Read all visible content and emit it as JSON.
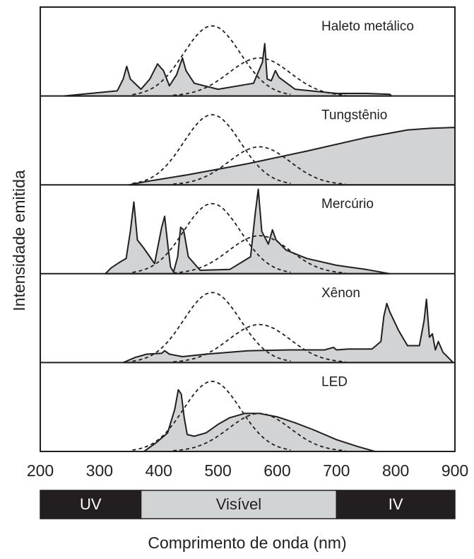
{
  "chart_data": {
    "type": "area",
    "xlabel": "Comprimento de onda (nm)",
    "ylabel": "Intensidade emitida",
    "xlim": [
      200,
      900
    ],
    "xticks": [
      200,
      300,
      400,
      500,
      600,
      700,
      800,
      900
    ],
    "fill_color": "#d1d3d4",
    "line_color": "#231f20",
    "bands": [
      {
        "label": "UV",
        "from": 200,
        "to": 370,
        "fill": "#231f20",
        "text_color": "#ffffff"
      },
      {
        "label": "Visível",
        "from": 370,
        "to": 700,
        "fill": "#d1d3d4",
        "text_color": "#231f20"
      },
      {
        "label": "IV",
        "from": 700,
        "to": 900,
        "fill": "#231f20",
        "text_color": "#ffffff"
      }
    ],
    "reference_curves": [
      {
        "peak": 490,
        "width": 48,
        "amplitude": 0.83,
        "style": "dashed"
      },
      {
        "peak": 570,
        "width": 52,
        "amplitude": 0.45,
        "style": "dashed"
      }
    ],
    "panels": [
      {
        "label": "Haleto metálico",
        "series": [
          [
            240,
            0
          ],
          [
            300,
            0.04
          ],
          [
            330,
            0.06
          ],
          [
            340,
            0.2
          ],
          [
            346,
            0.35
          ],
          [
            352,
            0.2
          ],
          [
            370,
            0.08
          ],
          [
            385,
            0.2
          ],
          [
            398,
            0.38
          ],
          [
            408,
            0.3
          ],
          [
            418,
            0.12
          ],
          [
            430,
            0.25
          ],
          [
            440,
            0.45
          ],
          [
            446,
            0.3
          ],
          [
            460,
            0.15
          ],
          [
            500,
            0.08
          ],
          [
            560,
            0.15
          ],
          [
            575,
            0.4
          ],
          [
            579,
            0.62
          ],
          [
            583,
            0.2
          ],
          [
            590,
            0.18
          ],
          [
            597,
            0.3
          ],
          [
            603,
            0.22
          ],
          [
            630,
            0.08
          ],
          [
            700,
            0.03
          ],
          [
            750,
            0.03
          ],
          [
            790,
            0.02
          ],
          [
            793,
            0
          ]
        ]
      },
      {
        "label": "Tungstênio",
        "series": [
          [
            350,
            0
          ],
          [
            380,
            0.04
          ],
          [
            450,
            0.12
          ],
          [
            550,
            0.25
          ],
          [
            650,
            0.4
          ],
          [
            750,
            0.56
          ],
          [
            820,
            0.65
          ],
          [
            860,
            0.67
          ],
          [
            900,
            0.68
          ],
          [
            900,
            0
          ]
        ]
      },
      {
        "label": "Mercúrio",
        "series": [
          [
            310,
            0
          ],
          [
            320,
            0.07
          ],
          [
            335,
            0.14
          ],
          [
            345,
            0.18
          ],
          [
            352,
            0.5
          ],
          [
            358,
            0.85
          ],
          [
            364,
            0.4
          ],
          [
            375,
            0.3
          ],
          [
            393,
            0.12
          ],
          [
            405,
            0.55
          ],
          [
            410,
            0.68
          ],
          [
            416,
            0.3
          ],
          [
            420,
            0.08
          ],
          [
            425,
            0.02
          ],
          [
            432,
            0.2
          ],
          [
            437,
            0.55
          ],
          [
            442,
            0.52
          ],
          [
            450,
            0.2
          ],
          [
            470,
            0.04
          ],
          [
            520,
            0.05
          ],
          [
            555,
            0.2
          ],
          [
            563,
            0.72
          ],
          [
            568,
            1.0
          ],
          [
            574,
            0.5
          ],
          [
            585,
            0.35
          ],
          [
            592,
            0.52
          ],
          [
            598,
            0.4
          ],
          [
            615,
            0.28
          ],
          [
            650,
            0.18
          ],
          [
            700,
            0.1
          ],
          [
            750,
            0.05
          ],
          [
            790,
            0
          ]
        ]
      },
      {
        "label": "Xênon",
        "series": [
          [
            340,
            0
          ],
          [
            360,
            0.06
          ],
          [
            380,
            0.1
          ],
          [
            405,
            0.11
          ],
          [
            410,
            0.14
          ],
          [
            418,
            0.1
          ],
          [
            440,
            0.07
          ],
          [
            480,
            0.1
          ],
          [
            550,
            0.14
          ],
          [
            620,
            0.15
          ],
          [
            680,
            0.15
          ],
          [
            695,
            0.18
          ],
          [
            700,
            0.15
          ],
          [
            720,
            0.16
          ],
          [
            760,
            0.16
          ],
          [
            775,
            0.25
          ],
          [
            780,
            0.55
          ],
          [
            785,
            0.7
          ],
          [
            790,
            0.6
          ],
          [
            805,
            0.38
          ],
          [
            820,
            0.2
          ],
          [
            840,
            0.2
          ],
          [
            848,
            0.5
          ],
          [
            852,
            0.75
          ],
          [
            857,
            0.3
          ],
          [
            862,
            0.34
          ],
          [
            867,
            0.15
          ],
          [
            872,
            0.25
          ],
          [
            880,
            0.12
          ],
          [
            890,
            0.05
          ],
          [
            897,
            0
          ]
        ]
      },
      {
        "label": "LED",
        "series": [
          [
            375,
            0
          ],
          [
            395,
            0.1
          ],
          [
            415,
            0.22
          ],
          [
            427,
            0.5
          ],
          [
            433,
            0.73
          ],
          [
            438,
            0.68
          ],
          [
            443,
            0.4
          ],
          [
            448,
            0.2
          ],
          [
            460,
            0.18
          ],
          [
            480,
            0.22
          ],
          [
            500,
            0.32
          ],
          [
            520,
            0.4
          ],
          [
            545,
            0.45
          ],
          [
            570,
            0.45
          ],
          [
            600,
            0.41
          ],
          [
            630,
            0.34
          ],
          [
            660,
            0.26
          ],
          [
            700,
            0.14
          ],
          [
            735,
            0.06
          ],
          [
            765,
            0
          ]
        ]
      }
    ]
  }
}
